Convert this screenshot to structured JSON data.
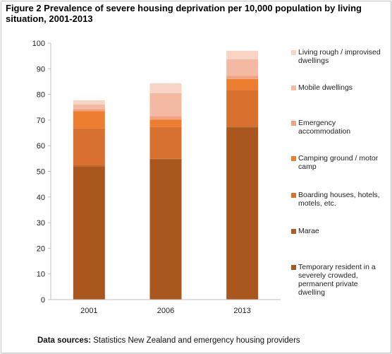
{
  "title": "Figure 2 Prevalence of severe housing deprivation per 10,000 population by living situation, 2001-2013",
  "source": {
    "label": "Data sources:",
    "text": " Statistics New Zealand and emergency housing providers"
  },
  "chart_data": {
    "type": "bar",
    "stacked": true,
    "categories": [
      "2001",
      "2006",
      "2013"
    ],
    "ylim": [
      0,
      100
    ],
    "yticks": [
      0,
      10,
      20,
      30,
      40,
      50,
      60,
      70,
      80,
      90,
      100
    ],
    "grid": false,
    "legend_position": "right",
    "series": [
      {
        "name": "Temporary resident in a severely crowded, permanent private dwelling",
        "legend_lines": [
          "Temporary resident in a",
          "severely crowded,",
          "permanent private",
          "dwelling"
        ],
        "color": "#a9561f",
        "values": [
          52,
          54.7,
          67.2
        ]
      },
      {
        "name": "Marae",
        "legend_lines": [
          "Marae"
        ],
        "color": "#b35b22",
        "values": [
          0.2,
          0.2,
          0.2
        ]
      },
      {
        "name": "Boarding houses, hotels, motels, etc.",
        "legend_lines": [
          "Boarding houses, hotels,",
          "motels, etc."
        ],
        "color": "#d8702f",
        "values": [
          14.5,
          12.5,
          14.3
        ]
      },
      {
        "name": "Camping ground / motor camp",
        "legend_lines": [
          "Camping ground / motor",
          "camp"
        ],
        "color": "#ed7d31",
        "values": [
          6.8,
          2.8,
          4.3
        ]
      },
      {
        "name": "Emergency accommodation",
        "legend_lines": [
          "Emergency",
          "accommodation"
        ],
        "color": "#f1a27e",
        "values": [
          0.8,
          1.3,
          1.2
        ]
      },
      {
        "name": "Mobile dwellings",
        "legend_lines": [
          "Mobile dwellings"
        ],
        "color": "#f4b9a3",
        "values": [
          1.8,
          9.0,
          6.5
        ]
      },
      {
        "name": "Living rough / improvised dwellings",
        "legend_lines": [
          "Living rough / improvised",
          "dwellings"
        ],
        "color": "#f9d3c3",
        "values": [
          1.6,
          3.8,
          3.3
        ]
      }
    ]
  }
}
